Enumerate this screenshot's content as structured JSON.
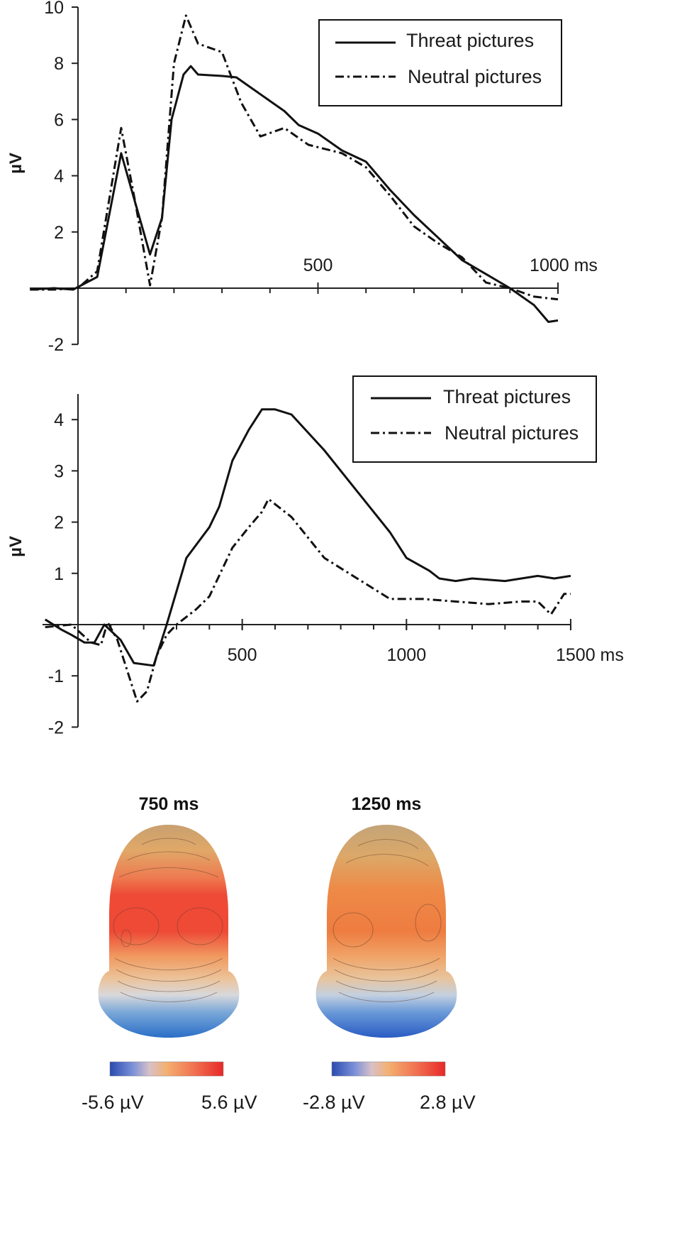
{
  "chart_data": [
    {
      "type": "line",
      "ylabel": "µV",
      "xlim": [
        -150,
        1000
      ],
      "ylim": [
        -2,
        10
      ],
      "x_tick_labels": [
        {
          "x": 500,
          "label": "500"
        },
        {
          "x": 1000,
          "label": "1000 ms"
        }
      ],
      "y_ticks": [
        -2,
        2,
        4,
        6,
        8,
        10
      ],
      "legend_position": "top-right",
      "series": [
        {
          "name": "Threat pictures",
          "style": "solid",
          "points": [
            [
              -100,
              -0.05
            ],
            [
              -50,
              0
            ],
            [
              -10,
              -0.05
            ],
            [
              40,
              0.4
            ],
            [
              90,
              4.8
            ],
            [
              120,
              3.0
            ],
            [
              150,
              1.2
            ],
            [
              175,
              2.5
            ],
            [
              195,
              6.0
            ],
            [
              220,
              7.6
            ],
            [
              235,
              7.9
            ],
            [
              250,
              7.6
            ],
            [
              300,
              7.55
            ],
            [
              330,
              7.5
            ],
            [
              380,
              6.9
            ],
            [
              430,
              6.3
            ],
            [
              460,
              5.8
            ],
            [
              500,
              5.5
            ],
            [
              550,
              4.9
            ],
            [
              600,
              4.5
            ],
            [
              650,
              3.5
            ],
            [
              700,
              2.6
            ],
            [
              750,
              1.8
            ],
            [
              800,
              1.0
            ],
            [
              850,
              0.5
            ],
            [
              900,
              0.0
            ],
            [
              950,
              -0.6
            ],
            [
              980,
              -1.2
            ],
            [
              1000,
              -1.15
            ]
          ]
        },
        {
          "name": "Neutral pictures",
          "style": "dash-dot",
          "points": [
            [
              -100,
              -0.05
            ],
            [
              -50,
              -0.05
            ],
            [
              0,
              0
            ],
            [
              40,
              0.6
            ],
            [
              90,
              5.7
            ],
            [
              120,
              3.0
            ],
            [
              150,
              0.1
            ],
            [
              175,
              2.5
            ],
            [
              200,
              8.0
            ],
            [
              225,
              9.7
            ],
            [
              250,
              8.7
            ],
            [
              300,
              8.4
            ],
            [
              340,
              6.6
            ],
            [
              380,
              5.4
            ],
            [
              430,
              5.7
            ],
            [
              480,
              5.1
            ],
            [
              550,
              4.8
            ],
            [
              600,
              4.3
            ],
            [
              650,
              3.3
            ],
            [
              700,
              2.2
            ],
            [
              750,
              1.6
            ],
            [
              800,
              1.1
            ],
            [
              850,
              0.2
            ],
            [
              900,
              0.0
            ],
            [
              950,
              -0.3
            ],
            [
              1000,
              -0.4
            ]
          ]
        }
      ]
    },
    {
      "type": "line",
      "ylabel": "µV",
      "xlim": [
        -150,
        1500
      ],
      "ylim": [
        -2,
        4.5
      ],
      "x_tick_labels": [
        {
          "x": 500,
          "label": "500"
        },
        {
          "x": 1000,
          "label": "1000"
        },
        {
          "x": 1500,
          "label": "1500 ms"
        }
      ],
      "y_ticks": [
        -2,
        -1,
        1,
        2,
        3,
        4
      ],
      "legend_position": "top-right",
      "series": [
        {
          "name": "Threat pictures",
          "style": "solid",
          "points": [
            [
              -100,
              0.1
            ],
            [
              -50,
              -0.1
            ],
            [
              -20,
              -0.2
            ],
            [
              20,
              -0.35
            ],
            [
              50,
              -0.35
            ],
            [
              80,
              0.0
            ],
            [
              130,
              -0.3
            ],
            [
              170,
              -0.75
            ],
            [
              230,
              -0.8
            ],
            [
              270,
              0.0
            ],
            [
              330,
              1.3
            ],
            [
              400,
              1.9
            ],
            [
              430,
              2.3
            ],
            [
              470,
              3.2
            ],
            [
              520,
              3.8
            ],
            [
              560,
              4.2
            ],
            [
              600,
              4.2
            ],
            [
              650,
              4.1
            ],
            [
              750,
              3.4
            ],
            [
              850,
              2.6
            ],
            [
              950,
              1.8
            ],
            [
              1000,
              1.3
            ],
            [
              1070,
              1.05
            ],
            [
              1100,
              0.9
            ],
            [
              1150,
              0.85
            ],
            [
              1200,
              0.9
            ],
            [
              1300,
              0.85
            ],
            [
              1400,
              0.95
            ],
            [
              1450,
              0.9
            ],
            [
              1500,
              0.95
            ]
          ]
        },
        {
          "name": "Neutral pictures",
          "style": "dash-dot",
          "points": [
            [
              -100,
              -0.05
            ],
            [
              -20,
              0.0
            ],
            [
              40,
              -0.35
            ],
            [
              70,
              -0.4
            ],
            [
              90,
              0.05
            ],
            [
              120,
              -0.3
            ],
            [
              150,
              -0.9
            ],
            [
              180,
              -1.5
            ],
            [
              210,
              -1.3
            ],
            [
              240,
              -0.6
            ],
            [
              270,
              -0.2
            ],
            [
              300,
              0.0
            ],
            [
              360,
              0.3
            ],
            [
              400,
              0.55
            ],
            [
              470,
              1.5
            ],
            [
              520,
              1.9
            ],
            [
              560,
              2.2
            ],
            [
              580,
              2.45
            ],
            [
              650,
              2.1
            ],
            [
              750,
              1.3
            ],
            [
              850,
              0.9
            ],
            [
              950,
              0.5
            ],
            [
              1050,
              0.5
            ],
            [
              1150,
              0.45
            ],
            [
              1250,
              0.4
            ],
            [
              1350,
              0.45
            ],
            [
              1400,
              0.45
            ],
            [
              1440,
              0.2
            ],
            [
              1480,
              0.6
            ],
            [
              1500,
              0.6
            ]
          ]
        }
      ]
    }
  ],
  "topography": [
    {
      "title": "750 ms",
      "scale_min": "-5.6 µV",
      "scale_max": "5.6 µV"
    },
    {
      "title": "1250 ms",
      "scale_min": "-2.8 µV",
      "scale_max": "2.8 µV"
    }
  ]
}
